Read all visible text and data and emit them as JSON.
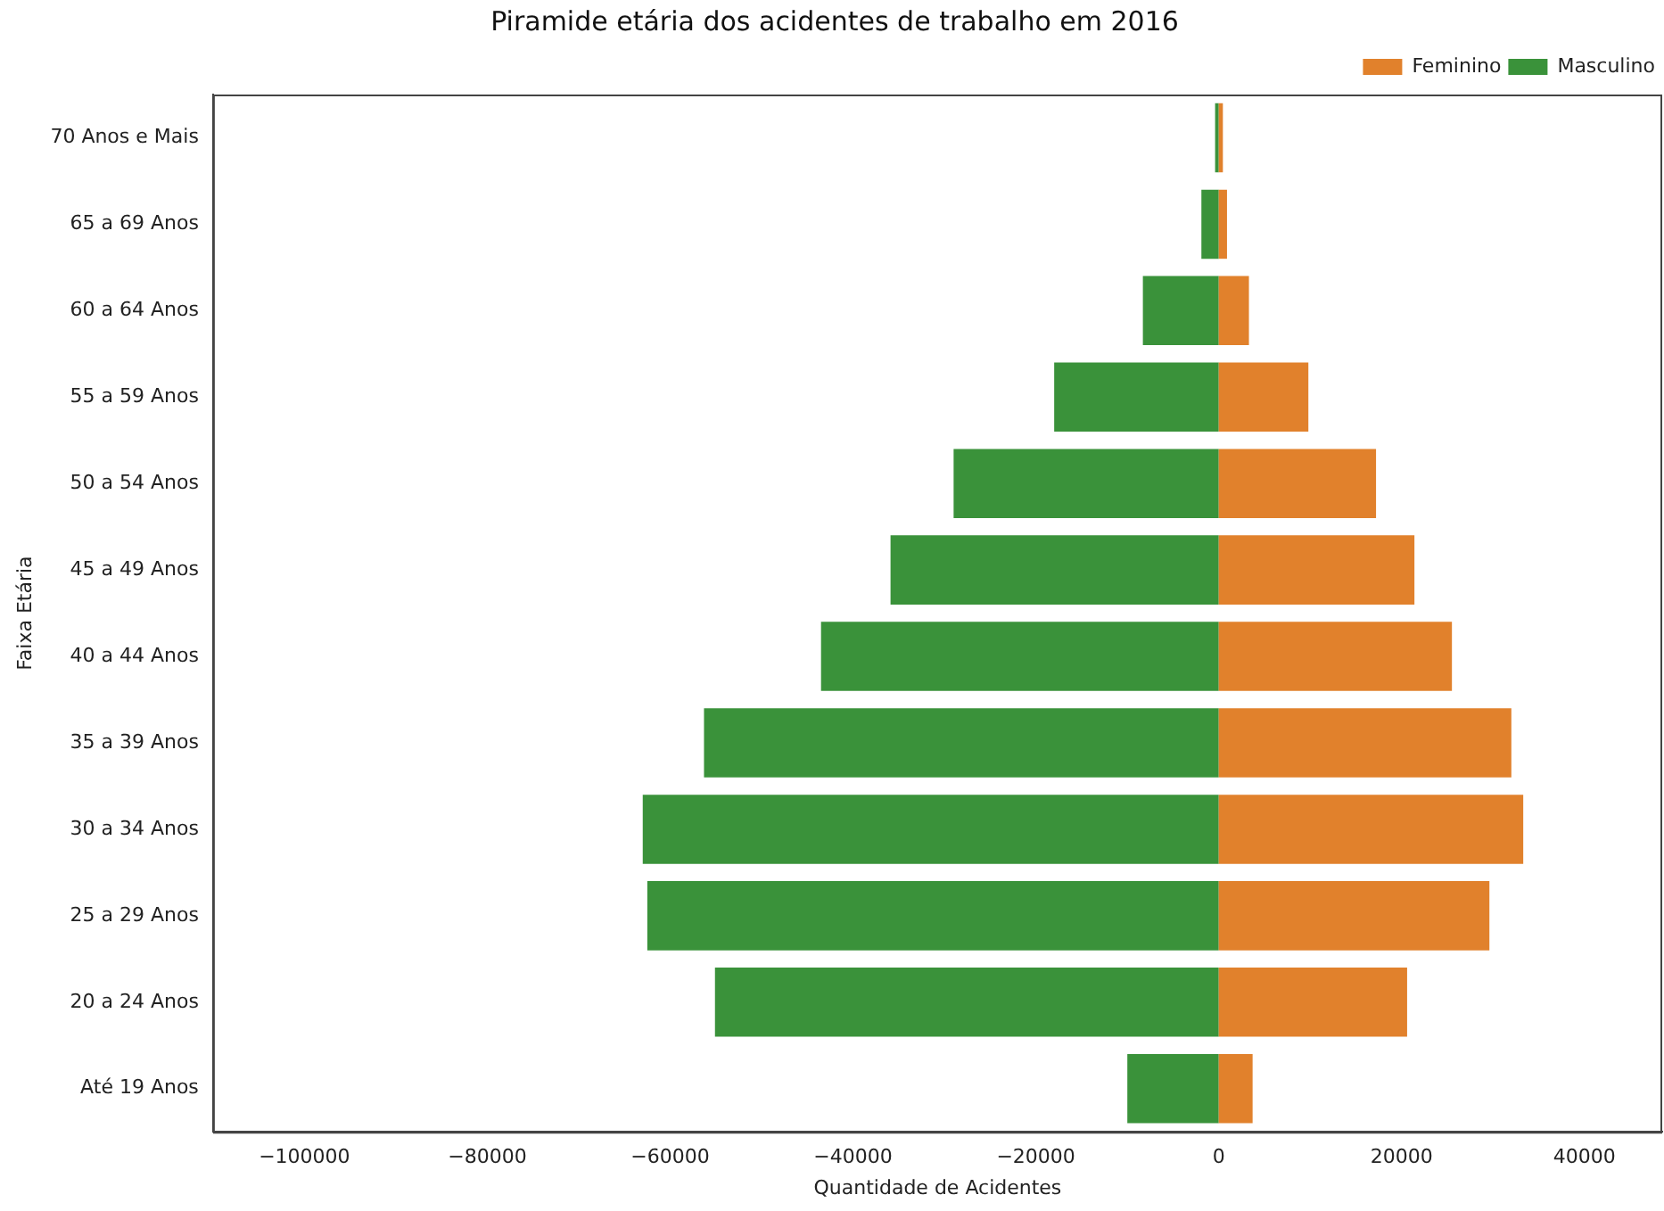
{
  "chart_data": {
    "type": "bar",
    "orientation": "horizontal",
    "stacked": true,
    "title": "Piramide etária dos acidentes de trabalho em 2016",
    "xlabel": "Quantidade de Acidentes",
    "ylabel": "Faixa Etária",
    "categories": [
      "70 Anos e Mais",
      "65 a 69 Anos",
      "60 a 64 Anos",
      "55 a 59 Anos",
      "50 a 54 Anos",
      "45 a 49 Anos",
      "40 a 44 Anos",
      "35 a 39 Anos",
      "30 a 34 Anos",
      "25 a 29 Anos",
      "20 a 24 Anos",
      "Até 19 Anos"
    ],
    "series": [
      {
        "name": "Feminino",
        "color": "#e1812c",
        "values": [
          450,
          900,
          3300,
          9800,
          17200,
          21400,
          25500,
          32000,
          33300,
          29600,
          20600,
          3700
        ]
      },
      {
        "name": "Masculino",
        "color": "#3a923a",
        "values": [
          -400,
          -1900,
          -8300,
          -18000,
          -29000,
          -35900,
          -43500,
          -56300,
          -63000,
          -62500,
          -55100,
          -10000
        ]
      }
    ],
    "xlim": [
      -110000,
      48500
    ],
    "xticks": [
      {
        "value": -100000,
        "label": "−100000"
      },
      {
        "value": -80000,
        "label": "−80000"
      },
      {
        "value": -60000,
        "label": "−60000"
      },
      {
        "value": -40000,
        "label": "−40000"
      },
      {
        "value": -20000,
        "label": "−20000"
      },
      0,
      20000,
      40000
    ],
    "grid": false,
    "legend": "top right"
  }
}
